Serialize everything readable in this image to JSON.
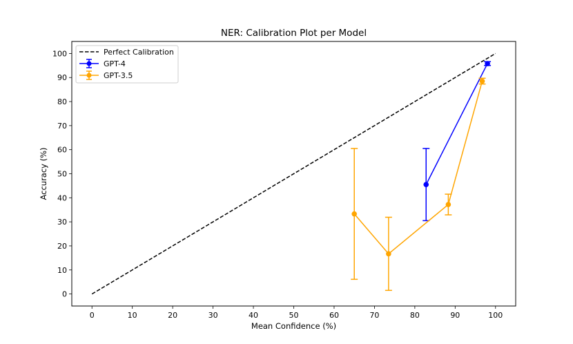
{
  "chart_data": {
    "type": "line",
    "title": "NER: Calibration Plot per Model",
    "xlabel": "Mean Confidence (%)",
    "ylabel": "Accuracy (%)",
    "xlim": [
      -5,
      105
    ],
    "ylim": [
      -5,
      105
    ],
    "xticks": [
      0,
      10,
      20,
      30,
      40,
      50,
      60,
      70,
      80,
      90,
      100
    ],
    "yticks": [
      0,
      10,
      20,
      30,
      40,
      50,
      60,
      70,
      80,
      90,
      100
    ],
    "grid": false,
    "legend_position": "top-left",
    "series": [
      {
        "name": "Perfect Calibration",
        "style": "dashed",
        "color": "#000000",
        "x": [
          0,
          100
        ],
        "y": [
          0,
          100
        ]
      },
      {
        "name": "GPT-4",
        "style": "errorbar",
        "color": "#0000ff",
        "x": [
          82.8,
          98.0
        ],
        "y": [
          45.5,
          95.8
        ],
        "err": [
          15.0,
          0.8
        ]
      },
      {
        "name": "GPT-3.5",
        "style": "errorbar",
        "color": "#ffa500",
        "x": [
          65.0,
          73.5,
          88.3,
          96.7
        ],
        "y": [
          33.3,
          16.7,
          37.2,
          88.5
        ],
        "err": [
          27.2,
          15.2,
          4.3,
          1.2
        ]
      }
    ]
  }
}
